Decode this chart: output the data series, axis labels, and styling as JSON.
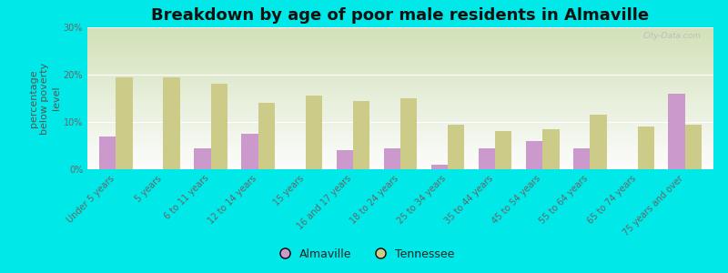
{
  "title": "Breakdown by age of poor male residents in Almaville",
  "ylabel": "percentage\nbelow poverty\nlevel",
  "categories": [
    "Under 5 years",
    "5 years",
    "6 to 11 years",
    "12 to 14 years",
    "15 years",
    "16 and 17 years",
    "18 to 24 years",
    "25 to 34 years",
    "35 to 44 years",
    "45 to 54 years",
    "55 to 64 years",
    "65 to 74 years",
    "75 years and over"
  ],
  "almaville": [
    7.0,
    0.0,
    4.5,
    7.5,
    0.0,
    4.0,
    4.5,
    1.0,
    4.5,
    6.0,
    4.5,
    0.0,
    16.0
  ],
  "tennessee": [
    19.5,
    19.5,
    18.0,
    14.0,
    15.5,
    14.5,
    15.0,
    9.5,
    8.0,
    8.5,
    11.5,
    9.0,
    9.5
  ],
  "almaville_color": "#cc99cc",
  "tennessee_color": "#cccc88",
  "bg_outer": "#00e8e8",
  "ylim": [
    0,
    30
  ],
  "yticks": [
    0,
    10,
    20,
    30
  ],
  "ytick_labels": [
    "0%",
    "10%",
    "20%",
    "30%"
  ],
  "title_fontsize": 13,
  "axis_label_fontsize": 8,
  "tick_fontsize": 7,
  "legend_fontsize": 9,
  "bar_width": 0.35,
  "watermark": "City-Data.com",
  "legend_almaville": "Almaville",
  "legend_tennessee": "Tennessee"
}
